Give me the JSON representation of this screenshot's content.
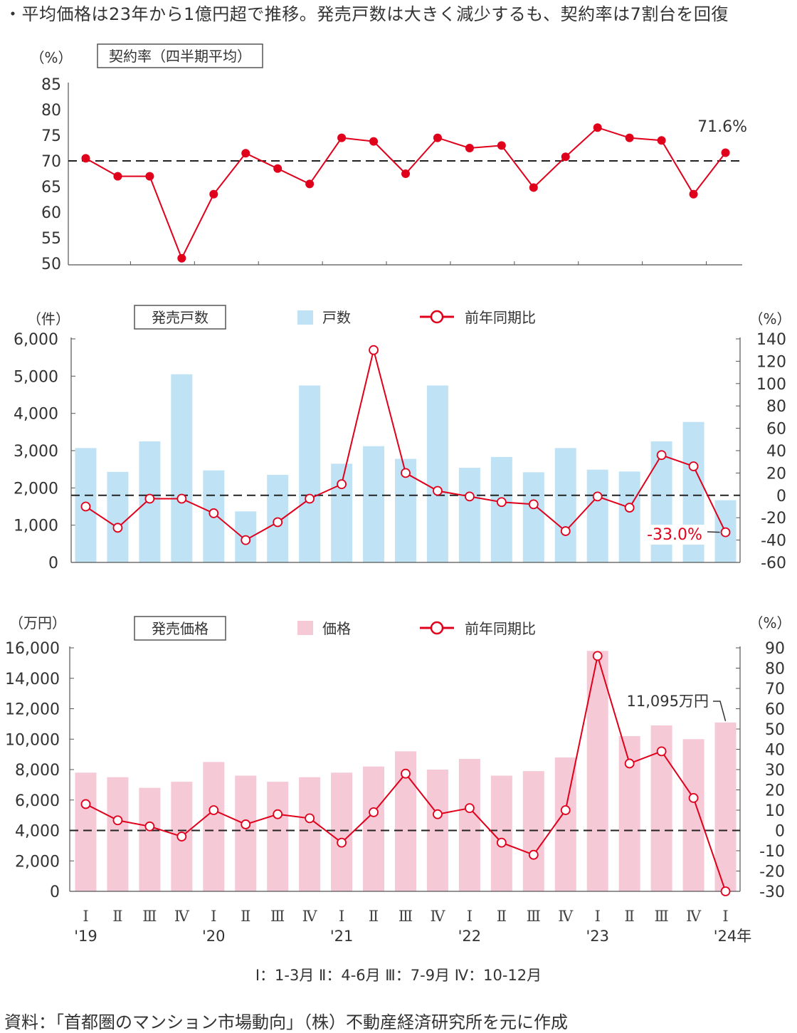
{
  "headline": "・平均価格は23年から1億円超で推移。発売戸数は大きく減少するも、契約率は7割台を回復",
  "quarter_note": "Ⅰ：1-3月  Ⅱ：4-6月  Ⅲ：7-9月  Ⅳ：10-12月",
  "source": "資料：「首都圏のマンション市場動向」（株）不動産経済研究所を元に作成",
  "colors": {
    "line": "#e0001b",
    "bar_units": "#bfe3f5",
    "bar_price": "#f5c9d6",
    "axis": "#555555"
  },
  "x_axis": {
    "quarters": [
      "Ⅰ",
      "Ⅱ",
      "Ⅲ",
      "Ⅳ",
      "Ⅰ",
      "Ⅱ",
      "Ⅲ",
      "Ⅳ",
      "Ⅰ",
      "Ⅱ",
      "Ⅲ",
      "Ⅳ",
      "Ⅰ",
      "Ⅱ",
      "Ⅲ",
      "Ⅳ",
      "Ⅰ",
      "Ⅱ",
      "Ⅲ",
      "Ⅳ",
      "Ⅰ"
    ],
    "years": [
      "'19",
      "",
      "",
      "",
      "'20",
      "",
      "",
      "",
      "'21",
      "",
      "",
      "",
      "'22",
      "",
      "",
      "",
      "'23",
      "",
      "",
      "",
      "'24年"
    ]
  },
  "chart_data": [
    {
      "id": "contract",
      "type": "line",
      "title": "契約率（四半期平均）",
      "ylabel": "（%）",
      "ylim": [
        50,
        85
      ],
      "yticks": [
        50,
        55,
        60,
        65,
        70,
        75,
        80,
        85
      ],
      "reference_line": 70,
      "annotation": "71.6%",
      "series": [
        {
          "values": [
            70.5,
            67,
            67,
            51,
            63.5,
            71.5,
            68.5,
            65.5,
            74.5,
            73.8,
            67.5,
            74.5,
            72.5,
            73,
            64.8,
            70.8,
            76.5,
            74.5,
            74,
            63.5,
            71.6
          ]
        }
      ]
    },
    {
      "id": "units",
      "type": "bar",
      "title": "発売戸数",
      "ylabel": "（件）",
      "y2label": "（%）",
      "legend": [
        "戸数",
        "前年同期比"
      ],
      "ylim": [
        0,
        6000
      ],
      "yticks": [
        0,
        1000,
        2000,
        3000,
        4000,
        5000,
        6000
      ],
      "ytick_labels": [
        "0",
        "1,000",
        "2,000",
        "3,000",
        "4,000",
        "5,000",
        "6,000"
      ],
      "y2lim": [
        -60,
        140
      ],
      "y2ticks": [
        -60,
        -40,
        -20,
        0,
        20,
        40,
        60,
        80,
        100,
        120,
        140
      ],
      "annotation": "-33.0%",
      "series": [
        {
          "name": "戸数",
          "values": [
            3070,
            2430,
            3250,
            5050,
            2470,
            1370,
            2350,
            4750,
            2650,
            3120,
            2780,
            4750,
            2540,
            2830,
            2420,
            3070,
            2490,
            2440,
            3250,
            3770,
            1670
          ]
        },
        {
          "name": "前年同期比",
          "axis": "right",
          "values": [
            -10,
            -29,
            -3,
            -3,
            -16,
            -40,
            -24,
            -3,
            10,
            130,
            20,
            4,
            -1,
            -6,
            -8,
            -32,
            -1,
            -11,
            36,
            26,
            -33
          ]
        }
      ]
    },
    {
      "id": "price",
      "type": "bar",
      "title": "発売価格",
      "ylabel": "（万円）",
      "y2label": "（%）",
      "legend": [
        "価格",
        "前年同期比"
      ],
      "ylim": [
        0,
        16000
      ],
      "yticks": [
        0,
        2000,
        4000,
        6000,
        8000,
        10000,
        12000,
        14000,
        16000
      ],
      "ytick_labels": [
        "0",
        "2,000",
        "4,000",
        "6,000",
        "8,000",
        "10,000",
        "12,000",
        "14,000",
        "16,000"
      ],
      "y2lim": [
        -30,
        90
      ],
      "y2ticks": [
        -30,
        -20,
        -10,
        0,
        10,
        20,
        30,
        40,
        50,
        60,
        70,
        80,
        90
      ],
      "annotation": "11,095万円",
      "series": [
        {
          "name": "価格",
          "values": [
            7800,
            7500,
            6800,
            7200,
            8500,
            7600,
            7200,
            7500,
            7800,
            8200,
            9200,
            8000,
            8700,
            7600,
            7900,
            8800,
            15800,
            10200,
            10900,
            10000,
            11095
          ]
        },
        {
          "name": "前年同期比",
          "axis": "right",
          "values": [
            13,
            5,
            2,
            -3,
            10,
            3,
            8,
            6,
            -6,
            9,
            28,
            8,
            11,
            -6,
            -12,
            10,
            86,
            33,
            39,
            16,
            -30
          ]
        }
      ]
    }
  ]
}
